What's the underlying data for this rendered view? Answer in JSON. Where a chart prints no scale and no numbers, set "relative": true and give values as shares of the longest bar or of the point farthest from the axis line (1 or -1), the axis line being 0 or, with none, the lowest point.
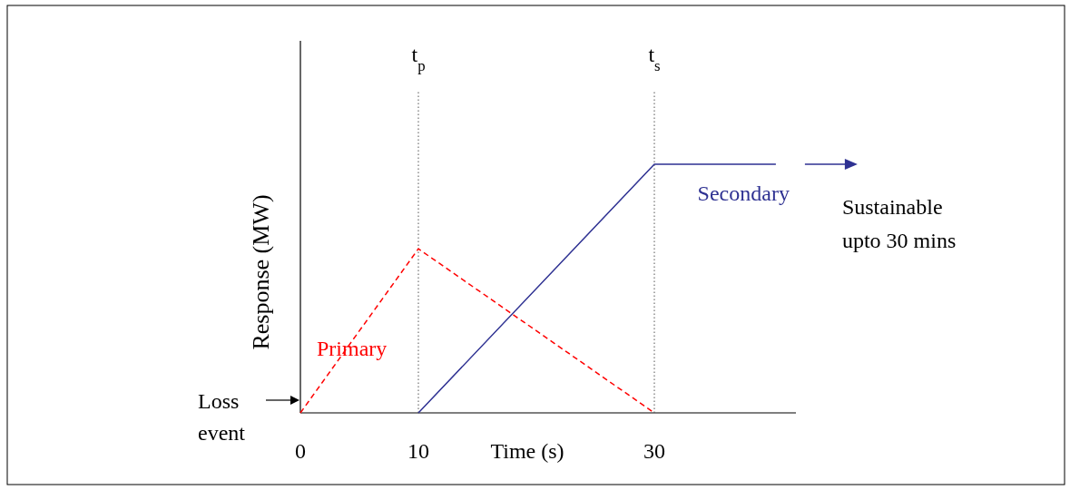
{
  "chart_data": {
    "type": "line",
    "relative": true,
    "xlabel": "Time (s)",
    "ylabel": "Response (MW)",
    "xlim": [
      0,
      42
    ],
    "xticks": [
      0,
      10,
      30
    ],
    "tick_labels": "x",
    "series": [
      {
        "name": "Primary",
        "color": "#ff0000",
        "line_style": "dashed",
        "x": [
          0,
          10,
          30
        ],
        "values": [
          0,
          0.66,
          0
        ]
      },
      {
        "name": "Secondary",
        "color": "#2e3192",
        "line_style": "solid",
        "x": [
          10,
          30,
          40.3
        ],
        "values": [
          0,
          1,
          1
        ]
      }
    ],
    "ref_lines": [
      {
        "axis": "x",
        "value": 10,
        "label": "t$_{p}$",
        "line_style": "dotted",
        "color": "#555555"
      },
      {
        "axis": "x",
        "value": 30,
        "label": "t$_{s}$",
        "line_style": "dotted",
        "color": "#555555"
      }
    ],
    "annotations": [
      {
        "text": "Loss event",
        "x": 0,
        "y": 0
      },
      "Sustainable upto 30 mins"
    ]
  }
}
